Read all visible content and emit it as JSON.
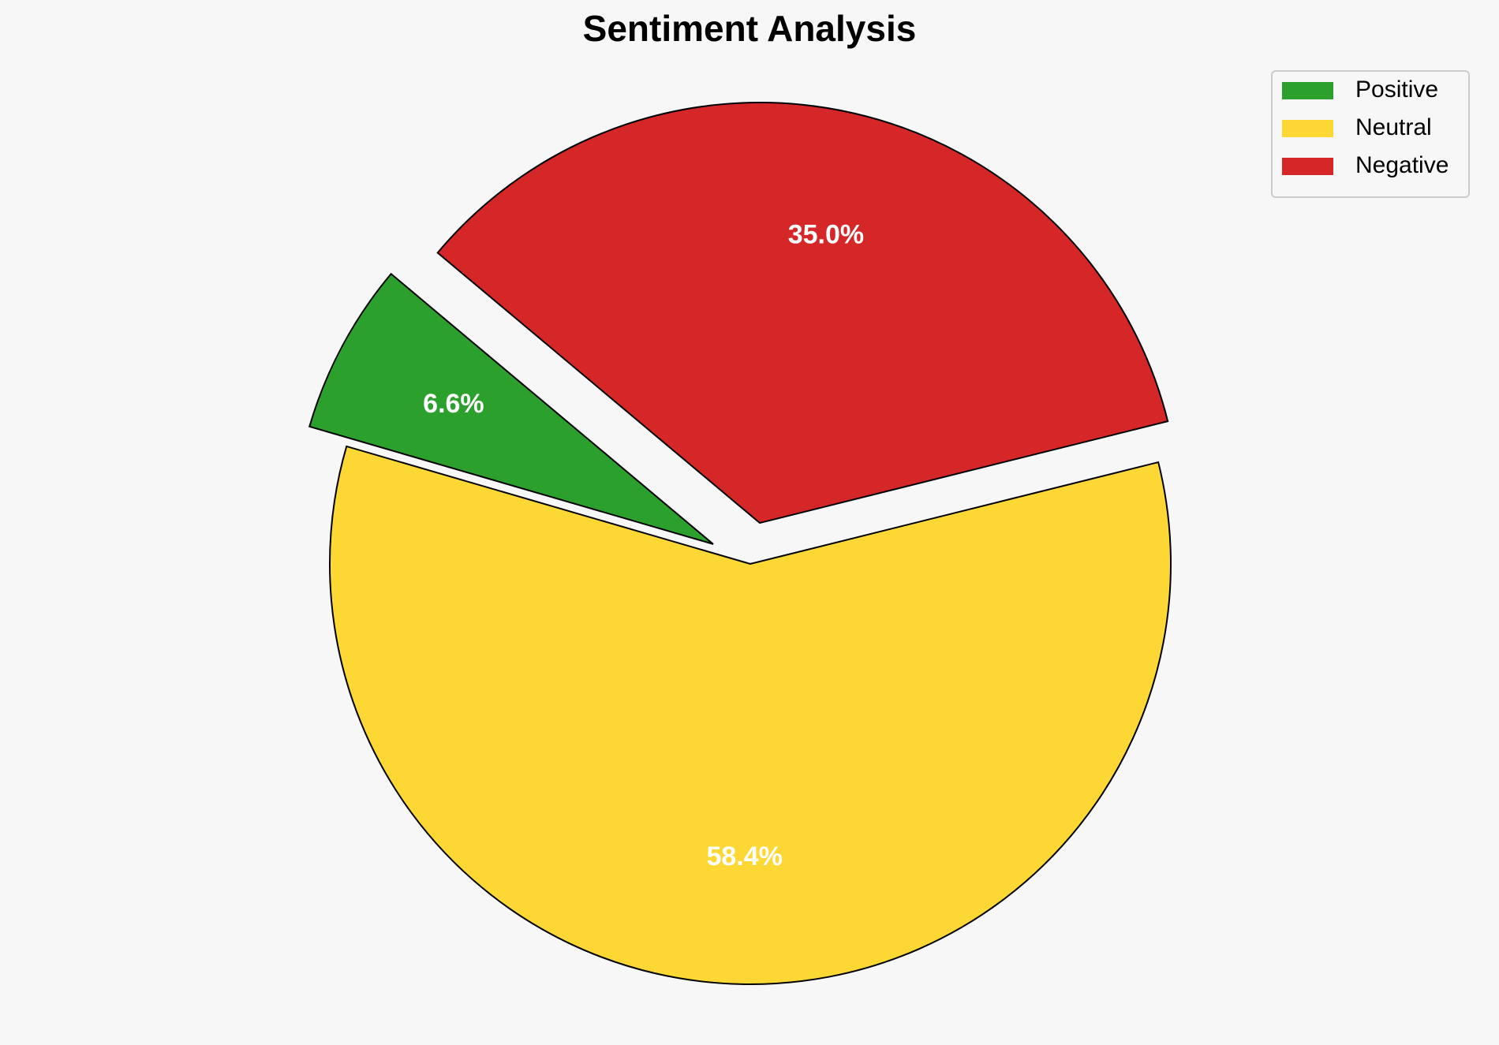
{
  "chart_data": {
    "type": "pie",
    "title": "Sentiment Analysis",
    "categories": [
      "Positive",
      "Neutral",
      "Negative"
    ],
    "values": [
      6.6,
      58.4,
      35.0
    ],
    "value_labels": [
      "6.6%",
      "58.4%",
      "35.0%"
    ],
    "colors": [
      "#2ca02c",
      "#fdd835",
      "#d62728"
    ],
    "legend": "upper right"
  }
}
